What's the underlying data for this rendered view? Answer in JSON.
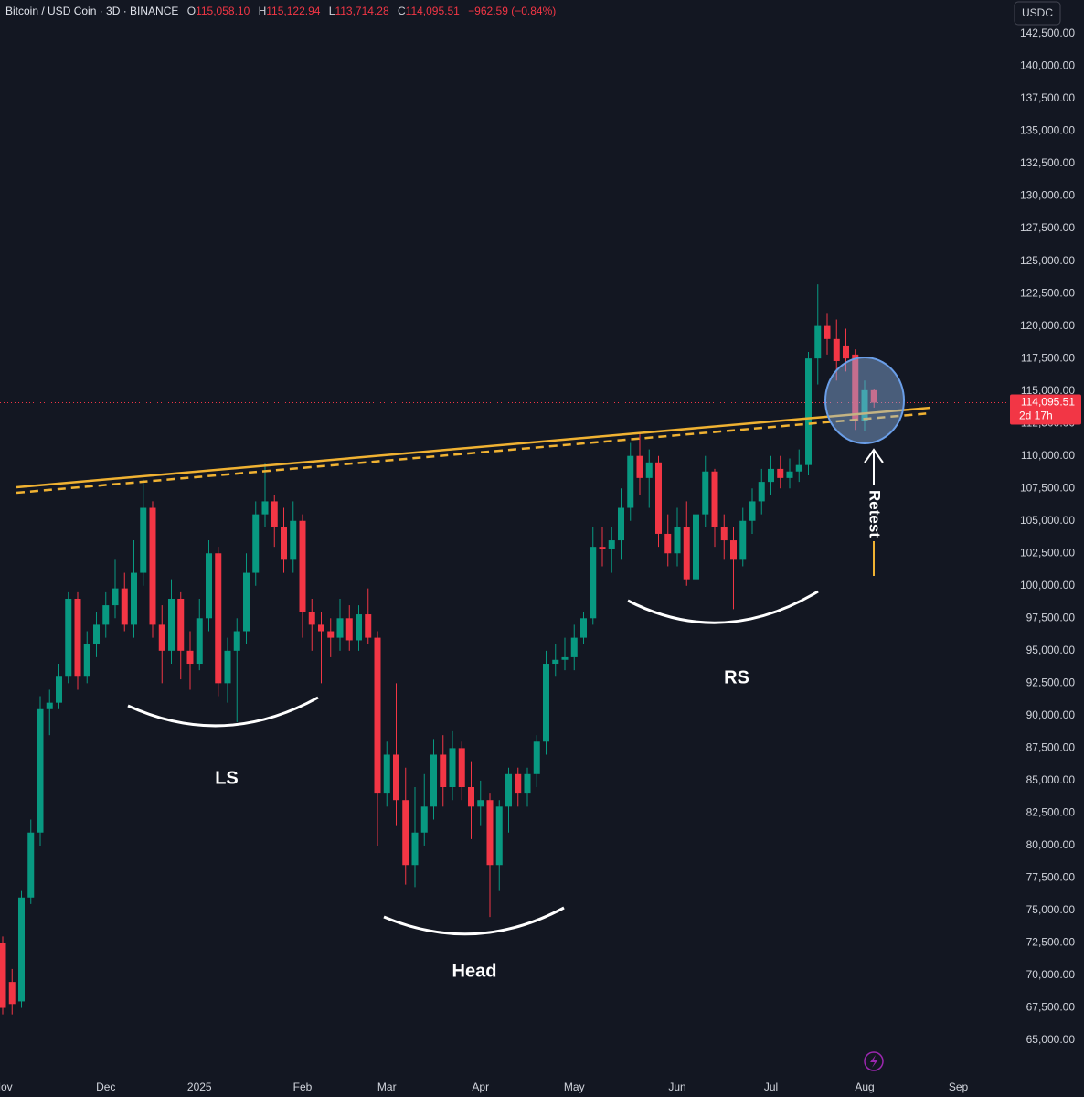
{
  "chart_data": {
    "type": "candlestick",
    "title": "Bitcoin / USD Coin · 3D · BINANCE",
    "ohlc_legend": [
      {
        "key": "O",
        "value": "115,058.10"
      },
      {
        "key": "H",
        "value": "115,122.94"
      },
      {
        "key": "L",
        "value": "113,714.28"
      },
      {
        "key": "C",
        "value": "114,095.51"
      }
    ],
    "change": "−962.59 (−0.84%)",
    "currency": "USDC",
    "price_label": "114,095.51",
    "countdown": "2d 17h",
    "annotations": [
      "LS",
      "Head",
      "RS",
      "Retest"
    ],
    "up_color": "#089981",
    "down_color": "#f23645",
    "categories": [
      "Nov",
      null,
      null,
      null,
      null,
      null,
      null,
      null,
      null,
      null,
      null,
      "Dec",
      null,
      null,
      null,
      null,
      null,
      null,
      null,
      null,
      null,
      "2025",
      null,
      null,
      null,
      null,
      null,
      null,
      null,
      null,
      null,
      null,
      "Feb",
      null,
      null,
      null,
      null,
      null,
      null,
      null,
      null,
      "Mar",
      null,
      null,
      null,
      null,
      null,
      null,
      null,
      null,
      null,
      "Apr",
      null,
      null,
      null,
      null,
      null,
      null,
      null,
      null,
      null,
      "May",
      null,
      null,
      null,
      null,
      null,
      null,
      null,
      null,
      null,
      null,
      "Jun",
      null,
      null,
      null,
      null,
      null,
      null,
      null,
      null,
      null,
      "Jul",
      null,
      null,
      null,
      null,
      null,
      null,
      null,
      null,
      null,
      "Aug",
      null,
      null,
      null,
      null,
      null,
      null,
      null,
      null,
      null,
      "Sep",
      null
    ],
    "open": [
      72500,
      69500,
      68000,
      76000,
      81000,
      90500,
      91000,
      93000,
      99000,
      93000,
      95500,
      97000,
      98500,
      99800,
      97000,
      101000,
      106000,
      97000,
      95000,
      99000,
      95000,
      94000,
      97500,
      102500,
      92500,
      95000,
      96500,
      101000,
      105500,
      106500,
      104500,
      102000,
      105000,
      98000,
      97000,
      96500,
      96000,
      97500,
      95800,
      97800,
      96000,
      84000,
      87000,
      83500,
      78500,
      81000,
      83000,
      87000,
      84500,
      87500,
      84500,
      83000,
      83500,
      78500,
      83000,
      85500,
      84000,
      85500,
      88000,
      94000,
      94300,
      94500,
      96000,
      97500,
      103000,
      102800,
      103500,
      106000,
      110000,
      108300,
      109500,
      104000,
      102500,
      104500,
      100500,
      105500,
      108800,
      104500,
      103500,
      102000,
      105000,
      106500,
      108000,
      109000,
      108300,
      108800,
      109300,
      117500,
      120000,
      119000,
      118500,
      117800,
      112700,
      115058.1,
      null,
      null,
      null,
      null,
      null,
      null,
      null,
      null,
      null,
      null
    ],
    "high": [
      73000,
      70500,
      76500,
      82000,
      91500,
      92000,
      94000,
      99500,
      99500,
      96500,
      98000,
      99500,
      102000,
      101000,
      103500,
      108200,
      106500,
      98500,
      100500,
      99500,
      96500,
      99000,
      103500,
      103000,
      96000,
      97500,
      102500,
      106500,
      109400,
      107000,
      106000,
      106500,
      105500,
      99000,
      98000,
      97500,
      99000,
      98500,
      98500,
      99800,
      96500,
      88000,
      92500,
      86000,
      84500,
      85500,
      88200,
      88500,
      88800,
      88000,
      86500,
      85000,
      84000,
      83500,
      86000,
      86000,
      86000,
      88500,
      95000,
      95500,
      96000,
      97000,
      98000,
      104500,
      104500,
      104500,
      107500,
      111000,
      111800,
      110500,
      110000,
      105500,
      106000,
      106500,
      107000,
      110000,
      109000,
      105500,
      104500,
      106000,
      107500,
      109000,
      110000,
      110000,
      109800,
      110500,
      118000,
      123200,
      121000,
      120500,
      119800,
      118200,
      115800,
      115122.94,
      null,
      null,
      null,
      null,
      null,
      null,
      null,
      null,
      null,
      null
    ],
    "low": [
      67000,
      67000,
      67500,
      75500,
      80000,
      88500,
      90500,
      92500,
      92000,
      92500,
      94500,
      96000,
      97500,
      96500,
      96000,
      100000,
      96000,
      92500,
      94000,
      92800,
      92000,
      93500,
      96500,
      91500,
      91000,
      89500,
      95500,
      100000,
      104500,
      103000,
      101000,
      101000,
      96000,
      95000,
      92500,
      94500,
      95000,
      95000,
      95000,
      95500,
      80000,
      83000,
      81500,
      77000,
      76800,
      80000,
      82000,
      83000,
      83500,
      83500,
      80500,
      81500,
      74500,
      76500,
      81000,
      83000,
      83000,
      84500,
      87000,
      93000,
      93500,
      93500,
      95500,
      97000,
      101500,
      101000,
      102000,
      105000,
      107000,
      106000,
      103000,
      101500,
      101500,
      100000,
      100500,
      104500,
      103000,
      102000,
      98200,
      101500,
      104000,
      105500,
      107000,
      107500,
      107500,
      108000,
      108500,
      115500,
      117800,
      115800,
      116500,
      112000,
      111900,
      113714.28,
      null,
      null,
      null,
      null,
      null,
      null,
      null,
      null,
      null,
      null
    ],
    "close": [
      67500,
      67800,
      76000,
      81000,
      90500,
      91000,
      93000,
      99000,
      93000,
      95500,
      97000,
      98500,
      99800,
      97000,
      101000,
      106000,
      97000,
      95000,
      99000,
      95000,
      94000,
      97500,
      102500,
      92500,
      95000,
      96500,
      101000,
      105500,
      106500,
      104500,
      102000,
      105000,
      98000,
      97000,
      96500,
      96000,
      97500,
      95800,
      97800,
      96000,
      84000,
      87000,
      83500,
      78500,
      81000,
      83000,
      87000,
      84500,
      87500,
      84500,
      83000,
      83500,
      78500,
      83000,
      85500,
      84000,
      85500,
      88000,
      94000,
      94300,
      94500,
      96000,
      97500,
      103000,
      102800,
      103500,
      106000,
      110000,
      108300,
      109500,
      104000,
      102500,
      104500,
      100500,
      105500,
      108800,
      104500,
      103500,
      102000,
      105000,
      106500,
      108000,
      109000,
      108300,
      108800,
      109300,
      117500,
      120000,
      119000,
      117300,
      117500,
      112700,
      115058.1,
      114095.51,
      null,
      null,
      null,
      null,
      null,
      null,
      null,
      null,
      null,
      null
    ],
    "ylim": [
      62400,
      145100
    ],
    "yticks": [
      {
        "value": 65000,
        "label": "65,000.00"
      },
      {
        "value": 67500,
        "label": "67,500.00"
      },
      {
        "value": 70000,
        "label": "70,000.00"
      },
      {
        "value": 72500,
        "label": "72,500.00"
      },
      {
        "value": 75000,
        "label": "75,000.00"
      },
      {
        "value": 77500,
        "label": "77,500.00"
      },
      {
        "value": 80000,
        "label": "80,000.00"
      },
      {
        "value": 82500,
        "label": "82,500.00"
      },
      {
        "value": 85000,
        "label": "85,000.00"
      },
      {
        "value": 87500,
        "label": "87,500.00"
      },
      {
        "value": 90000,
        "label": "90,000.00"
      },
      {
        "value": 92500,
        "label": "92,500.00"
      },
      {
        "value": 95000,
        "label": "95,000.00"
      },
      {
        "value": 97500,
        "label": "97,500.00"
      },
      {
        "value": 100000,
        "label": "100,000.00"
      },
      {
        "value": 102500,
        "label": "102,500.00"
      },
      {
        "value": 105000,
        "label": "105,000.00"
      },
      {
        "value": 107500,
        "label": "107,500.00"
      },
      {
        "value": 110000,
        "label": "110,000.00"
      },
      {
        "value": 112500,
        "label": "112,500.00"
      },
      {
        "value": 115000,
        "label": "115,000.00"
      },
      {
        "value": 117500,
        "label": "117,500.00"
      },
      {
        "value": 120000,
        "label": "120,000.00"
      },
      {
        "value": 122500,
        "label": "122,500.00"
      },
      {
        "value": 125000,
        "label": "125,000.00"
      },
      {
        "value": 127500,
        "label": "127,500.00"
      },
      {
        "value": 130000,
        "label": "130,000.00"
      },
      {
        "value": 132500,
        "label": "132,500.00"
      },
      {
        "value": 135000,
        "label": "135,000.00"
      },
      {
        "value": 137500,
        "label": "137,500.00"
      },
      {
        "value": 140000,
        "label": "140,000.00"
      },
      {
        "value": 142500,
        "label": "142,500.00"
      }
    ],
    "grid": false
  }
}
